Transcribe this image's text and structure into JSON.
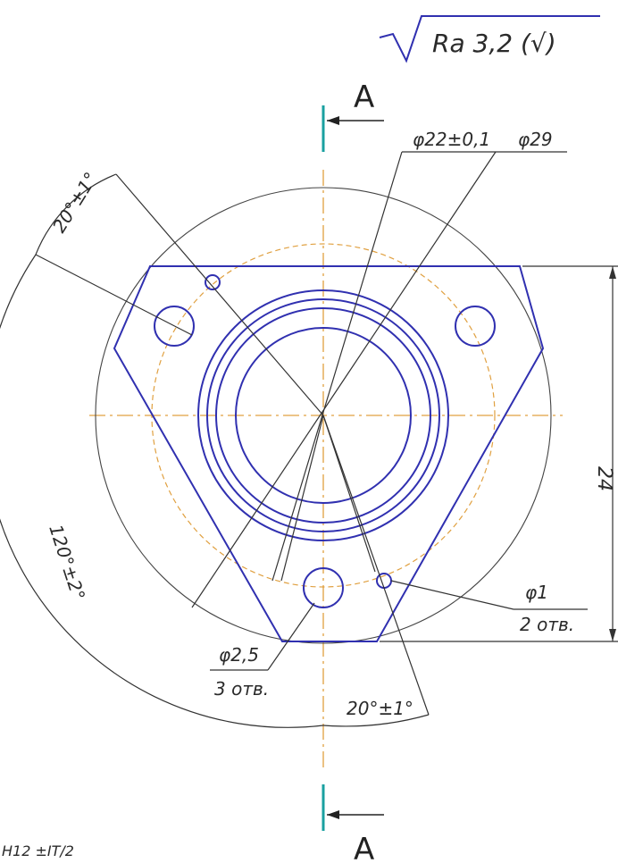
{
  "roughness": {
    "text": "Ra 3,2 (√)"
  },
  "section": {
    "top_label": "A",
    "bottom_label": "A"
  },
  "dimensions": {
    "d22": "φ22±0,1",
    "d29": "φ29",
    "angle_top": "20°±1°",
    "angle_big": "120°±2°",
    "height": "24",
    "hole_d1": "φ1",
    "hole_d1_count": "2 отв.",
    "hole_d25": "φ2,5",
    "hole_d25_count": "3 отв.",
    "angle_bottom": "20°±1°",
    "corner_note": "H12 ±IT/2"
  },
  "colors": {
    "part": "#3030b0",
    "centerline": "#e0a040",
    "dimension": "#333333",
    "section_marker": "#1aa0a0"
  }
}
